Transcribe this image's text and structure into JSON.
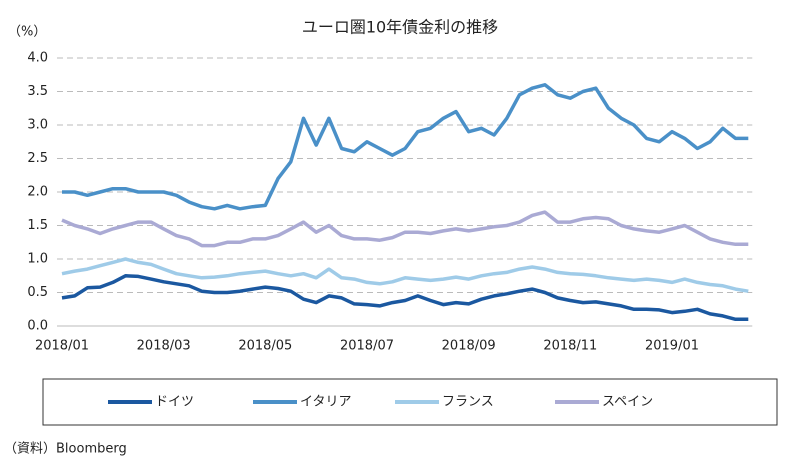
{
  "chart_data": {
    "type": "line",
    "title": "ユーロ圏10年債金利の推移",
    "y_unit": "（%）",
    "source": "（資料）Bloomberg",
    "categories": [
      "2018/01",
      null,
      null,
      null,
      null,
      null,
      null,
      null,
      "2018/03",
      null,
      null,
      null,
      null,
      null,
      null,
      null,
      "2018/05",
      null,
      null,
      null,
      null,
      null,
      null,
      null,
      "2018/07",
      null,
      null,
      null,
      null,
      null,
      null,
      null,
      "2018/09",
      null,
      null,
      null,
      null,
      null,
      null,
      null,
      "2018/11",
      null,
      null,
      null,
      null,
      null,
      null,
      null,
      "2019/01",
      null,
      null,
      null,
      null,
      null,
      null
    ],
    "series": [
      {
        "name": "ドイツ",
        "color": "#1b58a0",
        "values": [
          0.42,
          0.45,
          0.57,
          0.58,
          0.65,
          0.75,
          0.74,
          0.7,
          0.66,
          0.63,
          0.6,
          0.52,
          0.5,
          0.5,
          0.52,
          0.55,
          0.58,
          0.56,
          0.52,
          0.4,
          0.35,
          0.45,
          0.42,
          0.33,
          0.32,
          0.3,
          0.35,
          0.38,
          0.45,
          0.38,
          0.32,
          0.35,
          0.33,
          0.4,
          0.45,
          0.48,
          0.52,
          0.55,
          0.5,
          0.42,
          0.38,
          0.35,
          0.36,
          0.33,
          0.3,
          0.25,
          0.25,
          0.24,
          0.2,
          0.22,
          0.25,
          0.18,
          0.15,
          0.1,
          0.1
        ]
      },
      {
        "name": "イタリア",
        "color": "#4a90c8",
        "values": [
          2.0,
          2.0,
          1.95,
          2.0,
          2.05,
          2.05,
          2.0,
          2.0,
          2.0,
          1.95,
          1.85,
          1.78,
          1.75,
          1.8,
          1.75,
          1.78,
          1.8,
          2.2,
          2.45,
          3.1,
          2.7,
          3.1,
          2.65,
          2.6,
          2.75,
          2.65,
          2.55,
          2.65,
          2.9,
          2.95,
          3.1,
          3.2,
          2.9,
          2.95,
          2.85,
          3.1,
          3.45,
          3.55,
          3.6,
          3.45,
          3.4,
          3.5,
          3.55,
          3.25,
          3.1,
          3.0,
          2.8,
          2.75,
          2.9,
          2.8,
          2.65,
          2.75,
          2.95,
          2.8,
          2.8
        ]
      },
      {
        "name": "フランス",
        "color": "#9fcbe8",
        "values": [
          0.78,
          0.82,
          0.85,
          0.9,
          0.95,
          1.0,
          0.95,
          0.92,
          0.85,
          0.78,
          0.75,
          0.72,
          0.73,
          0.75,
          0.78,
          0.8,
          0.82,
          0.78,
          0.75,
          0.78,
          0.72,
          0.85,
          0.72,
          0.7,
          0.65,
          0.63,
          0.66,
          0.72,
          0.7,
          0.68,
          0.7,
          0.73,
          0.7,
          0.75,
          0.78,
          0.8,
          0.85,
          0.88,
          0.85,
          0.8,
          0.78,
          0.77,
          0.75,
          0.72,
          0.7,
          0.68,
          0.7,
          0.68,
          0.65,
          0.7,
          0.65,
          0.62,
          0.6,
          0.55,
          0.52
        ]
      },
      {
        "name": "スペイン",
        "color": "#aaaad4",
        "values": [
          1.58,
          1.5,
          1.45,
          1.38,
          1.45,
          1.5,
          1.55,
          1.55,
          1.45,
          1.35,
          1.3,
          1.2,
          1.2,
          1.25,
          1.25,
          1.3,
          1.3,
          1.35,
          1.45,
          1.55,
          1.4,
          1.5,
          1.35,
          1.3,
          1.3,
          1.28,
          1.32,
          1.4,
          1.4,
          1.38,
          1.42,
          1.45,
          1.42,
          1.45,
          1.48,
          1.5,
          1.55,
          1.65,
          1.7,
          1.55,
          1.55,
          1.6,
          1.62,
          1.6,
          1.5,
          1.45,
          1.42,
          1.4,
          1.45,
          1.5,
          1.4,
          1.3,
          1.25,
          1.22,
          1.22
        ]
      }
    ],
    "ylim": [
      0,
      4
    ],
    "yticks": [
      {
        "value": 0,
        "label": "0.0"
      },
      {
        "value": 0.5,
        "label": "0.5"
      },
      {
        "value": 1,
        "label": "1.0"
      },
      {
        "value": 1.5,
        "label": "1.5"
      },
      {
        "value": 2,
        "label": "2.0"
      },
      {
        "value": 2.5,
        "label": "2.5"
      },
      {
        "value": 3,
        "label": "3.0"
      },
      {
        "value": 3.5,
        "label": "3.5"
      },
      {
        "value": 4,
        "label": "4.0"
      }
    ],
    "grid": true,
    "legend": "bottom"
  }
}
